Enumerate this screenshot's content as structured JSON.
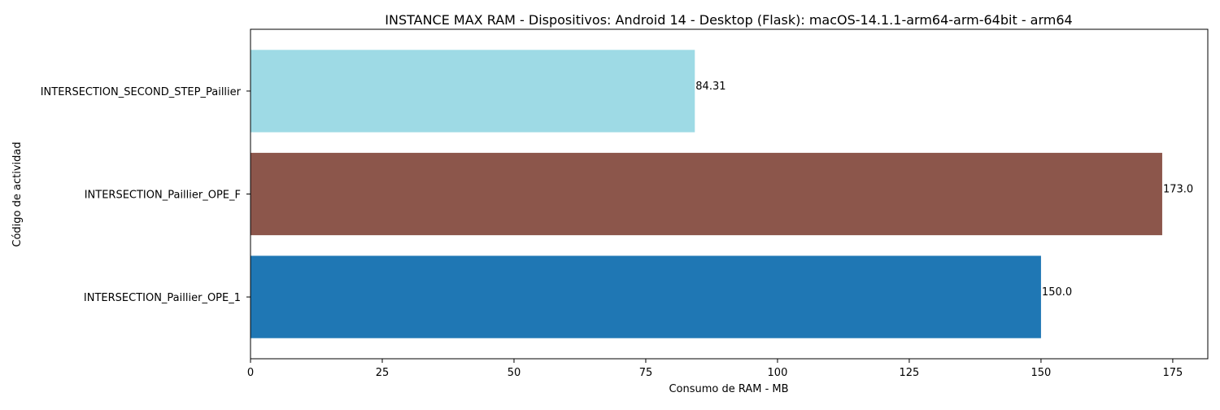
{
  "chart_data": {
    "type": "bar",
    "orientation": "horizontal",
    "title": "INSTANCE MAX RAM - Dispositivos: Android 14 - Desktop (Flask): macOS-14.1.1-arm64-arm-64bit - arm64",
    "xlabel": "Consumo de RAM - MB",
    "ylabel": "Código de actividad",
    "categories": [
      "INTERSECTION_Paillier_OPE_1",
      "INTERSECTION_Paillier_OPE_F",
      "INTERSECTION_SECOND_STEP_Paillier"
    ],
    "values": [
      150.0,
      173.0,
      84.31
    ],
    "value_labels": [
      "150.0",
      "173.0",
      "84.31"
    ],
    "colors": [
      "#1f77b4",
      "#8c564b",
      "#9edae5"
    ],
    "xlim": [
      0,
      181.65
    ],
    "xticks": [
      0,
      25,
      50,
      75,
      100,
      125,
      150,
      175
    ],
    "xtick_labels": [
      "0",
      "25",
      "50",
      "75",
      "100",
      "125",
      "150",
      "175"
    ],
    "grid": false,
    "legend": "none"
  }
}
